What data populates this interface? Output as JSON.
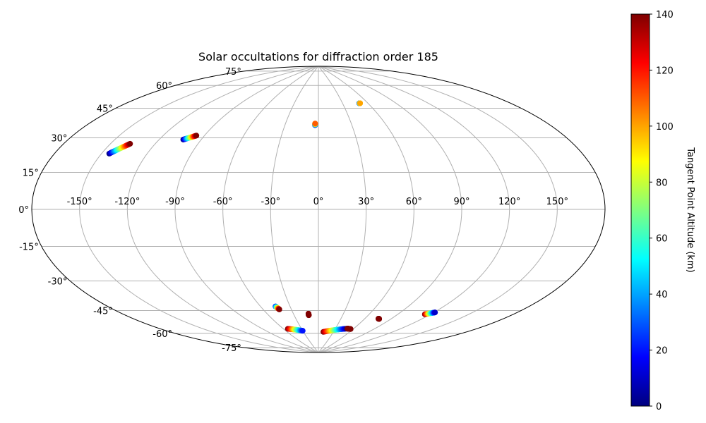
{
  "chart_data": {
    "type": "scatter",
    "projection": "aitoff",
    "title": "Solar occultations for diffraction order 185",
    "grid": true,
    "lon_ticks": [
      -150,
      -120,
      -90,
      -60,
      -30,
      0,
      30,
      60,
      90,
      120,
      150
    ],
    "lon_tick_labels": [
      "-150°",
      "-120°",
      "-90°",
      "-60°",
      "-30°",
      "0°",
      "30°",
      "60°",
      "90°",
      "120°",
      "150°"
    ],
    "lat_ticks": [
      -75,
      -60,
      -45,
      -30,
      -15,
      0,
      15,
      30,
      45,
      60,
      75
    ],
    "lat_tick_labels": [
      "-75°",
      "-60°",
      "-45°",
      "-30°",
      "-15°",
      "0°",
      "15°",
      "30°",
      "45°",
      "60°",
      "75°"
    ],
    "colorbar": {
      "label": "Tangent Point Altitude (km)",
      "range": [
        0,
        140
      ],
      "ticks": [
        0,
        20,
        40,
        60,
        80,
        100,
        120,
        140
      ],
      "tick_labels": [
        "0",
        "20",
        "40",
        "60",
        "80",
        "100",
        "120",
        "140"
      ],
      "colormap": "jet",
      "placement": "right"
    },
    "series": [
      {
        "start": [
          -145,
          27
        ],
        "end": [
          -137,
          33
        ],
        "alt_start": 0,
        "alt_end": 140
      },
      {
        "start": [
          -103,
          39
        ],
        "end": [
          -96,
          42
        ],
        "alt_start": 0,
        "alt_end": 140
      },
      {
        "start": [
          -3,
          53
        ],
        "end": [
          -3,
          54
        ],
        "alt_start": 0,
        "alt_end": 110
      },
      {
        "start": [
          50,
          65.5
        ],
        "end": [
          51,
          65.5
        ],
        "alt_start": 0,
        "alt_end": 100
      },
      {
        "start": [
          -45,
          -60
        ],
        "end": [
          -43,
          -62
        ],
        "alt_start": 20,
        "alt_end": 140
      },
      {
        "start": [
          -12,
          -65.5
        ],
        "end": [
          -12,
          -66.5
        ],
        "alt_start": 140,
        "alt_end": 140
      },
      {
        "start": [
          -53,
          -74
        ],
        "end": [
          -30,
          -76
        ],
        "alt_start": 140,
        "alt_end": 20
      },
      {
        "start": [
          10,
          -77
        ],
        "end": [
          50,
          -74
        ],
        "alt_start": 140,
        "alt_end": 0
      },
      {
        "start": [
          50,
          -74
        ],
        "end": [
          56,
          -74
        ],
        "alt_start": 140,
        "alt_end": 140
      },
      {
        "start": [
          76,
          -66
        ],
        "end": [
          77,
          -66
        ],
        "alt_start": 140,
        "alt_end": 140
      },
      {
        "start": [
          115,
          -59
        ],
        "end": [
          121,
          -57
        ],
        "alt_start": 140,
        "alt_end": 10
      }
    ]
  }
}
